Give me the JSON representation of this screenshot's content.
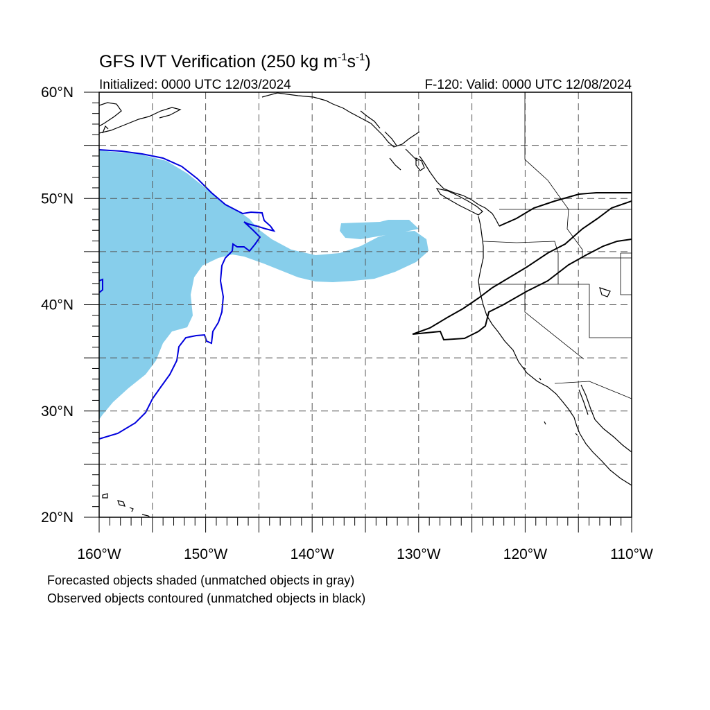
{
  "title": {
    "main": "GFS IVT Verification (250 kg m",
    "sup1": "-1",
    "mid": "s",
    "sup2": "-1",
    "end": ")"
  },
  "subtitle_left": "Initialized: 0000 UTC 12/03/2024",
  "subtitle_right": "F-120: Valid: 0000 UTC 12/08/2024",
  "map": {
    "lon_range": [
      -160,
      -110
    ],
    "lat_range": [
      20,
      60
    ],
    "lon_tick_labels": [
      "160°W",
      "150°W",
      "140°W",
      "130°W",
      "120°W",
      "110°W"
    ],
    "lat_tick_labels": [
      "20°N",
      "30°N",
      "40°N",
      "50°N",
      "60°N"
    ],
    "gridlines": "dashed",
    "colors": {
      "forecast_fill": "#87CEEB",
      "observed_contour": "#0000DD",
      "coastline": "#000000",
      "grid": "#555555"
    }
  },
  "legend_notes": [
    "Forecasted objects shaded (unmatched objects in gray)",
    "Observed objects contoured (unmatched objects in black)"
  ]
}
